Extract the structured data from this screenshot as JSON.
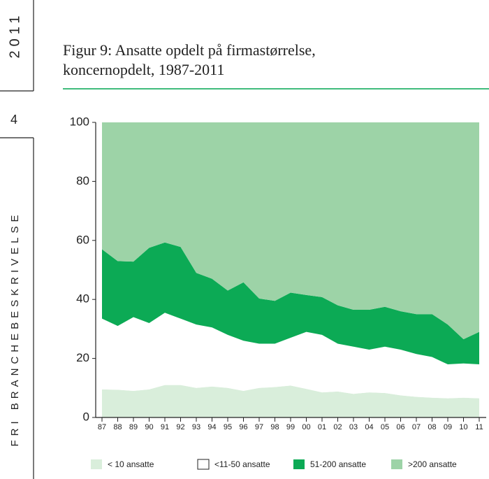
{
  "sidebar": {
    "year": "2011",
    "page": "4",
    "section": "FRI BRANCHEBESKRIVELSE"
  },
  "chart_data": {
    "type": "stacked-area",
    "title": "Figur 9: Ansatte opdelt på firmastørrelse, koncernopdelt, 1987-2011",
    "categories": [
      "87",
      "88",
      "89",
      "90",
      "91",
      "92",
      "93",
      "94",
      "95",
      "96",
      "97",
      "98",
      "99",
      "00",
      "01",
      "02",
      "03",
      "04",
      "05",
      "06",
      "07",
      "08",
      "09",
      "10",
      "11"
    ],
    "series": [
      {
        "name": "< 10 ansatte",
        "color": "#d9eedb",
        "values": [
          9.5,
          9.4,
          9,
          9.5,
          11,
          11,
          10,
          10.5,
          10,
          9,
          10,
          10.3,
          10.8,
          9.7,
          8.5,
          8.8,
          8,
          8.5,
          8.3,
          7.5,
          7,
          6.7,
          6.5,
          6.7,
          6.5
        ]
      },
      {
        "name": "<11-50 ansatte",
        "color": "#ffffff",
        "values": [
          24,
          21.6,
          25,
          22.5,
          24.5,
          22.5,
          21.5,
          20,
          18,
          17,
          15,
          14.7,
          16.2,
          19.3,
          19.5,
          16.2,
          16,
          14.5,
          15.7,
          15.5,
          14.5,
          13.8,
          11.5,
          11.6,
          11.5
        ]
      },
      {
        "name": "51-200 ansatte",
        "color": "#0caa55",
        "values": [
          23.5,
          22,
          18.8,
          25.5,
          23.8,
          24.3,
          17.5,
          16.5,
          15,
          19.8,
          15.3,
          14.5,
          15.3,
          12.5,
          12.8,
          13,
          12.5,
          13.5,
          13.5,
          13,
          13.5,
          14.5,
          13.5,
          8.2,
          11
        ]
      },
      {
        "name": ">200 ansatte",
        "color": "#9dd3a7",
        "values": [
          43,
          47,
          47.2,
          42.5,
          40.7,
          42.2,
          51,
          53,
          57,
          54.2,
          59.7,
          60.5,
          57.7,
          58.5,
          59.2,
          62,
          63.5,
          63.5,
          62.5,
          64,
          65,
          65,
          68.5,
          73.5,
          71
        ]
      }
    ],
    "ylim": [
      0,
      100
    ],
    "yticks": [
      0,
      20,
      40,
      60,
      80,
      100
    ]
  }
}
